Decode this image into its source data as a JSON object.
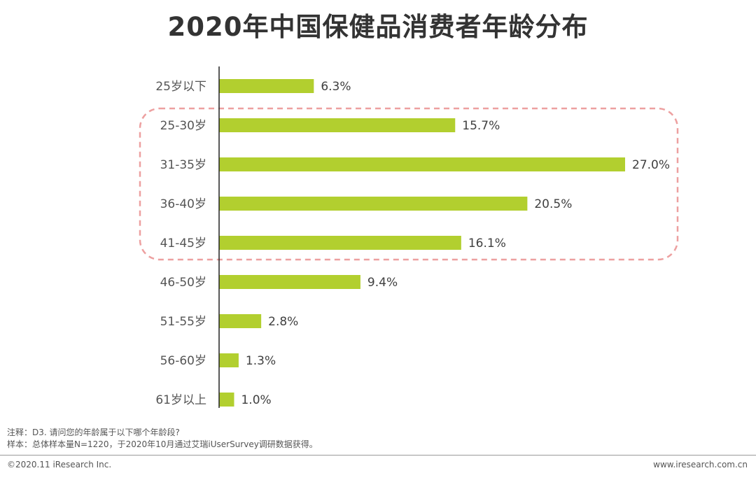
{
  "chart_data": {
    "type": "bar",
    "orientation": "horizontal",
    "title": "2020年中国保健品消费者年龄分布",
    "categories": [
      "25岁以下",
      "25-30岁",
      "31-35岁",
      "36-40岁",
      "41-45岁",
      "46-50岁",
      "51-55岁",
      "56-60岁",
      "61岁以上"
    ],
    "values": [
      6.3,
      15.7,
      27.0,
      20.5,
      16.1,
      9.4,
      2.8,
      1.3,
      1.0
    ],
    "value_labels": [
      "6.3%",
      "15.7%",
      "27.0%",
      "20.5%",
      "16.1%",
      "9.4%",
      "2.8%",
      "1.3%",
      "1.0%"
    ],
    "xlim": [
      0,
      27.0
    ],
    "highlight_range": [
      "25-30岁",
      "41-45岁"
    ],
    "xlabel": "",
    "ylabel": ""
  },
  "colors": {
    "bar": "#b2cf2f",
    "highlight_border": "#eda0a0",
    "axis": "#222222"
  },
  "notes": {
    "line1": "注释：D3. 请问您的年龄属于以下哪个年龄段?",
    "line2": "样本：总体样本量N=1220，于2020年10月通过艾瑞iUserSurvey调研数据获得。"
  },
  "footer": {
    "copyright": "©2020.11 iResearch Inc.",
    "website": "www.iresearch.com.cn"
  }
}
